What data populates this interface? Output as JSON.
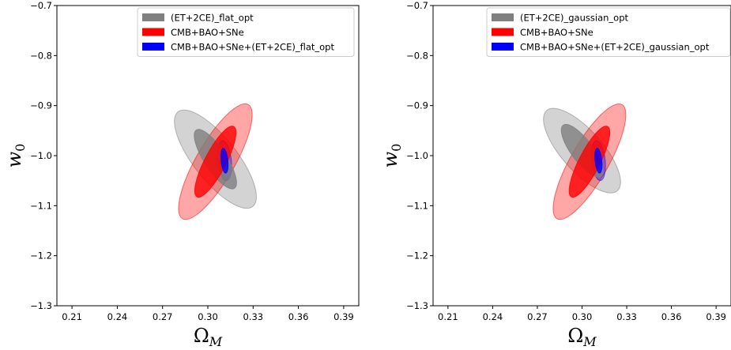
{
  "chart_data": [
    {
      "type": "contour",
      "xlabel": "Ω",
      "xlabel_sub": "M",
      "ylabel": "w",
      "ylabel_sub": "0",
      "xlim": [
        0.2,
        0.4
      ],
      "ylim": [
        -1.3,
        -0.7
      ],
      "xticks": [
        0.21,
        0.24,
        0.27,
        0.3,
        0.33,
        0.36,
        0.39
      ],
      "xtick_labels": [
        "0.21",
        "0.24",
        "0.27",
        "0.30",
        "0.33",
        "0.36",
        "0.39"
      ],
      "yticks": [
        -1.3,
        -1.2,
        -1.1,
        -1.0,
        -0.9,
        -0.8,
        -0.7
      ],
      "ytick_labels": [
        "−1.3",
        "−1.2",
        "−1.1",
        "−1.0",
        "−0.9",
        "−0.8",
        "−0.7"
      ],
      "legend_position": "top-right",
      "series": [
        {
          "name": "(ET+2CE)_flat_opt",
          "color": "#808080",
          "center": [
            0.305,
            -1.007
          ],
          "contours": [
            {
              "level": "2sigma",
              "extent_x": [
                0.279,
                0.33
              ],
              "extent_y": [
                -1.105,
                -0.91
              ],
              "tilt": "negative"
            },
            {
              "level": "1sigma",
              "extent_x": [
                0.292,
                0.318
              ],
              "extent_y": [
                -1.065,
                -0.945
              ],
              "tilt": "negative"
            }
          ]
        },
        {
          "name": "CMB+BAO+SNe",
          "color": "#ff0000",
          "center": [
            0.305,
            -1.012
          ],
          "contours": [
            {
              "level": "2sigma",
              "extent_x": [
                0.283,
                0.328
              ],
              "extent_y": [
                -1.13,
                -0.895
              ],
              "tilt": "positive"
            },
            {
              "level": "1sigma",
              "extent_x": [
                0.293,
                0.318
              ],
              "extent_y": [
                -1.085,
                -0.94
              ],
              "tilt": "positive"
            }
          ]
        },
        {
          "name": "CMB+BAO+SNe+(ET+2CE)_flat_opt",
          "color": "#0000ff",
          "center": [
            0.311,
            -1.01
          ],
          "contours": [
            {
              "level": "2sigma",
              "extent_x": [
                0.306,
                0.316
              ],
              "extent_y": [
                -1.05,
                -0.97
              ],
              "tilt": "slight-negative"
            },
            {
              "level": "1sigma",
              "extent_x": [
                0.3085,
                0.3135
              ],
              "extent_y": [
                -1.035,
                -0.985
              ],
              "tilt": "slight-negative"
            }
          ]
        }
      ]
    },
    {
      "type": "contour",
      "xlabel": "Ω",
      "xlabel_sub": "M",
      "ylabel": "w",
      "ylabel_sub": "0",
      "xlim": [
        0.2,
        0.4
      ],
      "ylim": [
        -1.3,
        -0.7
      ],
      "xticks": [
        0.21,
        0.24,
        0.27,
        0.3,
        0.33,
        0.36,
        0.39
      ],
      "xtick_labels": [
        "0.21",
        "0.24",
        "0.27",
        "0.30",
        "0.33",
        "0.36",
        "0.39"
      ],
      "yticks": [
        -1.3,
        -1.2,
        -1.1,
        -1.0,
        -0.9,
        -0.8,
        -0.7
      ],
      "ytick_labels": [
        "−1.3",
        "−1.2",
        "−1.1",
        "−1.0",
        "−0.9",
        "−0.8",
        "−0.7"
      ],
      "legend_position": "top-right",
      "series": [
        {
          "name": "(ET+2CE)_gaussian_opt",
          "color": "#808080",
          "center": [
            0.3,
            -0.99
          ],
          "contours": [
            {
              "level": "2sigma",
              "extent_x": [
                0.275,
                0.324
              ],
              "extent_y": [
                -1.07,
                -0.905
              ],
              "tilt": "negative"
            },
            {
              "level": "1sigma",
              "extent_x": [
                0.287,
                0.313
              ],
              "extent_y": [
                -1.045,
                -0.94
              ],
              "tilt": "negative"
            }
          ]
        },
        {
          "name": "CMB+BAO+SNe",
          "color": "#ff0000",
          "center": [
            0.305,
            -1.012
          ],
          "contours": [
            {
              "level": "2sigma",
              "extent_x": [
                0.283,
                0.328
              ],
              "extent_y": [
                -1.13,
                -0.895
              ],
              "tilt": "positive"
            },
            {
              "level": "1sigma",
              "extent_x": [
                0.293,
                0.318
              ],
              "extent_y": [
                -1.085,
                -0.94
              ],
              "tilt": "positive"
            }
          ]
        },
        {
          "name": "CMB+BAO+SNe+(ET+2CE)_gaussian_opt",
          "color": "#0000ff",
          "center": [
            0.311,
            -1.01
          ],
          "contours": [
            {
              "level": "2sigma",
              "extent_x": [
                0.306,
                0.316
              ],
              "extent_y": [
                -1.05,
                -0.97
              ],
              "tilt": "slight-negative"
            },
            {
              "level": "1sigma",
              "extent_x": [
                0.3085,
                0.3135
              ],
              "extent_y": [
                -1.035,
                -0.985
              ],
              "tilt": "slight-negative"
            }
          ]
        }
      ]
    }
  ]
}
